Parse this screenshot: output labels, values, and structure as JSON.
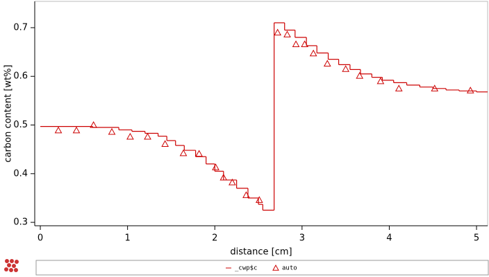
{
  "chart_data": {
    "type": "line",
    "xlabel": "distance [cm]",
    "ylabel": "carbon content [wt%]",
    "xlim": [
      -0.064,
      5.127
    ],
    "ylim": [
      0.293,
      0.754
    ],
    "xticks": [
      0,
      1,
      2,
      3,
      4,
      5
    ],
    "yticks": [
      0.3,
      0.4,
      0.5,
      0.6,
      0.7
    ],
    "legend": "bottom",
    "series": [
      {
        "name": "_cwp$c",
        "color": "#cc0000",
        "style": "step",
        "x": [
          0,
          0.6,
          0.9,
          1.05,
          1.2,
          1.35,
          1.45,
          1.55,
          1.65,
          1.78,
          1.9,
          2.0,
          2.1,
          2.25,
          2.38,
          2.5,
          2.55,
          2.68,
          2.8,
          2.92,
          3.05,
          3.17,
          3.3,
          3.42,
          3.55,
          3.67,
          3.8,
          3.92,
          4.05,
          4.2,
          4.35,
          4.5,
          4.65,
          4.8,
          5.0,
          5.127
        ],
        "values": [
          0.497,
          0.495,
          0.49,
          0.487,
          0.483,
          0.477,
          0.468,
          0.458,
          0.448,
          0.435,
          0.42,
          0.405,
          0.387,
          0.37,
          0.35,
          0.337,
          0.325,
          0.71,
          0.695,
          0.68,
          0.663,
          0.648,
          0.635,
          0.624,
          0.614,
          0.605,
          0.598,
          0.592,
          0.587,
          0.582,
          0.578,
          0.575,
          0.572,
          0.57,
          0.568,
          0.568
        ]
      },
      {
        "name": "auto",
        "color": "#cc0000",
        "style": "triangle",
        "x": [
          0.207,
          0.414,
          0.61,
          0.82,
          1.03,
          1.23,
          1.43,
          1.64,
          1.82,
          2.01,
          2.1,
          2.2,
          2.36,
          2.51,
          2.72,
          2.83,
          2.93,
          3.03,
          3.13,
          3.29,
          3.5,
          3.66,
          3.9,
          4.11,
          4.52,
          4.93
        ],
        "values": [
          0.489,
          0.489,
          0.5,
          0.486,
          0.476,
          0.476,
          0.461,
          0.442,
          0.441,
          0.413,
          0.392,
          0.382,
          0.356,
          0.346,
          0.69,
          0.686,
          0.666,
          0.666,
          0.647,
          0.626,
          0.615,
          0.601,
          0.59,
          0.575,
          0.575,
          0.571
        ]
      }
    ]
  }
}
